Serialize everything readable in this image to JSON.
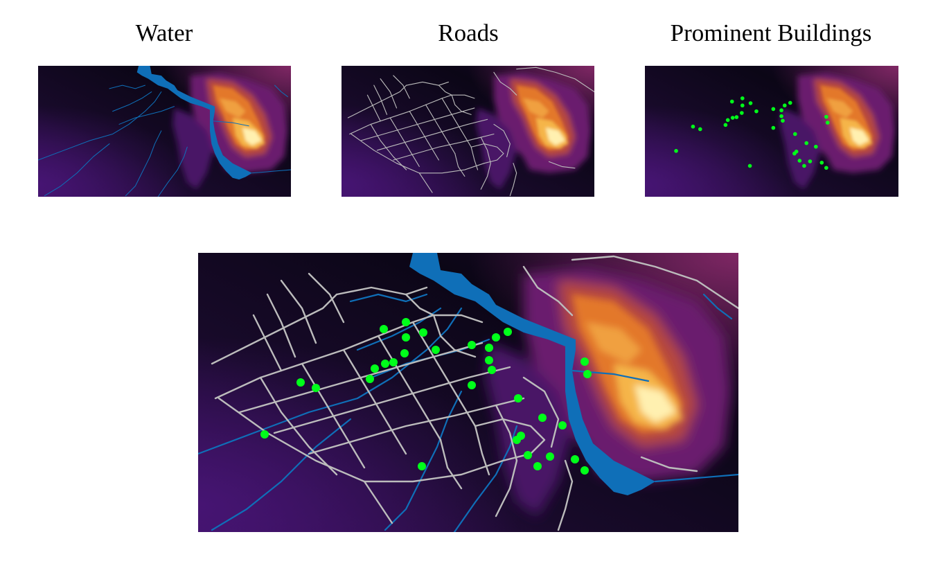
{
  "panels": {
    "water_title": "Water",
    "roads_title": "Roads",
    "buildings_title": "Prominent Buildings"
  },
  "colors": {
    "water": "#0f6fb8",
    "roads": "#bcbcbc",
    "buildings": "#00ff1a",
    "terrain_low": "#050312",
    "terrain_mid": "#5a1670",
    "terrain_high": "#f0a030",
    "terrain_peak": "#fff2b0"
  },
  "layers": [
    "terrain",
    "water",
    "roads",
    "prominent-buildings"
  ]
}
